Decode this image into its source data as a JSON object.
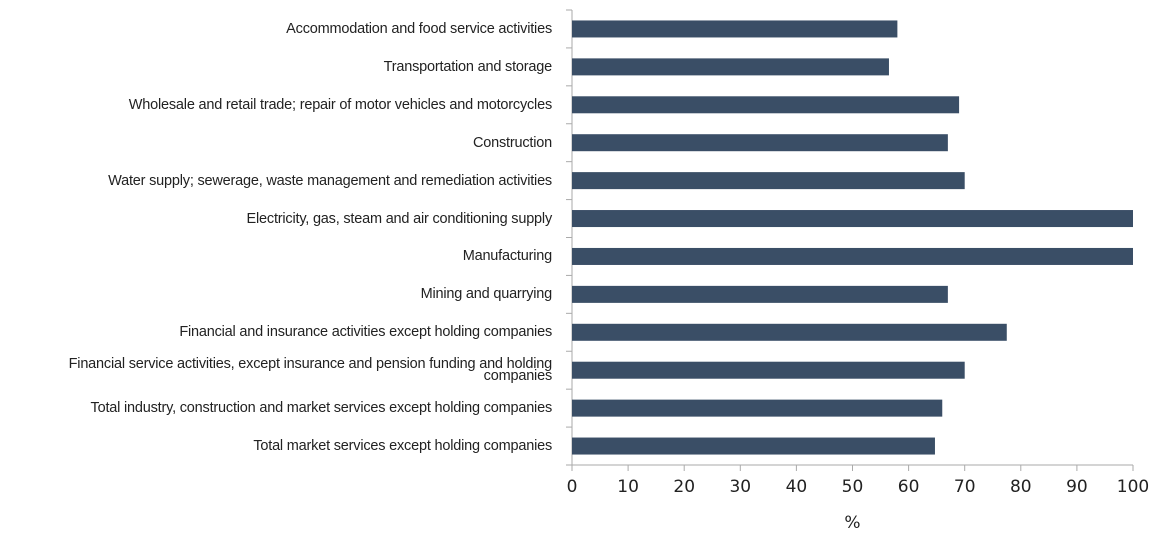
{
  "chart_data": {
    "type": "bar",
    "orientation": "horizontal",
    "categories": [
      "Accommodation and food service activities",
      "Transportation and storage",
      "Wholesale and retail trade; repair of motor vehicles and motorcycles",
      "Construction",
      "Water supply; sewerage, waste management and remediation activities",
      "Electricity, gas, steam and air conditioning supply",
      "Manufacturing",
      "Mining and quarrying",
      "Financial and insurance activities except holding companies",
      "Financial service activities, except insurance and pension funding and holding companies",
      "Total industry, construction and market services except holding companies",
      "Total market services except holding companies"
    ],
    "values": [
      58,
      56.5,
      69,
      67,
      70,
      100,
      100,
      67,
      77.5,
      70,
      66,
      64.7
    ],
    "color": "#3a4e66",
    "xlabel": "%",
    "xlim": [
      0,
      100
    ],
    "xticks": [
      0,
      10,
      20,
      30,
      40,
      50,
      60,
      70,
      80,
      90,
      100
    ],
    "grid": false
  }
}
